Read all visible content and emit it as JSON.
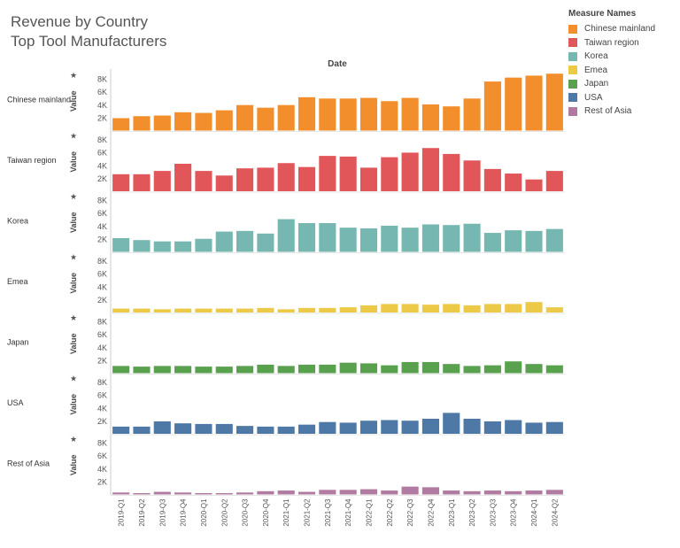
{
  "title": "Revenue by Country",
  "subtitle": "Top Tool Manufacturers",
  "legend": {
    "title": "Measure Names",
    "items": [
      {
        "label": "Chinese mainland",
        "color": "#f28e2b"
      },
      {
        "label": "Taiwan region",
        "color": "#e15759"
      },
      {
        "label": "Korea",
        "color": "#76b7b2"
      },
      {
        "label": "Emea",
        "color": "#edc948"
      },
      {
        "label": "Japan",
        "color": "#59a14f"
      },
      {
        "label": "USA",
        "color": "#4e79a7"
      },
      {
        "label": "Rest of Asia",
        "color": "#b07aa1"
      }
    ]
  },
  "chart_data": {
    "type": "bar",
    "xlabel": "Date",
    "ylabel": "Value",
    "ylim": [
      0,
      9000
    ],
    "y_ticks": [
      "2K",
      "4K",
      "6K",
      "8K"
    ],
    "grid": false,
    "legend_position": "top-right",
    "categories": [
      "2019-Q1",
      "2019-Q2",
      "2019-Q3",
      "2019-Q4",
      "2020-Q1",
      "2020-Q2",
      "2020-Q3",
      "2020-Q4",
      "2021-Q1",
      "2021-Q2",
      "2021-Q3",
      "2021-Q4",
      "2022-Q1",
      "2022-Q2",
      "2022-Q3",
      "2022-Q4",
      "2023-Q1",
      "2023-Q2",
      "2023-Q3",
      "2023-Q4",
      "2024-Q1",
      "2024-Q2"
    ],
    "series": [
      {
        "name": "Chinese mainland",
        "color": "#f28e2b",
        "values": [
          1900,
          2200,
          2300,
          2800,
          2700,
          3100,
          3900,
          3500,
          3900,
          5100,
          4900,
          4900,
          5000,
          4500,
          5000,
          4000,
          3700,
          4900,
          7500,
          8100,
          8400,
          8700
        ]
      },
      {
        "name": "Taiwan region",
        "color": "#e15759",
        "values": [
          2600,
          2600,
          3100,
          4200,
          3100,
          2400,
          3500,
          3600,
          4300,
          3700,
          5400,
          5300,
          3600,
          5200,
          5900,
          6600,
          5700,
          4700,
          3400,
          2700,
          1800,
          3100
        ]
      },
      {
        "name": "Korea",
        "color": "#76b7b2",
        "values": [
          2100,
          1800,
          1600,
          1600,
          2000,
          3100,
          3200,
          2800,
          5000,
          4400,
          4400,
          3700,
          3600,
          4000,
          3700,
          4200,
          4100,
          4300,
          2900,
          3300,
          3200,
          3500
        ]
      },
      {
        "name": "Emea",
        "color": "#edc948",
        "values": [
          600,
          600,
          500,
          600,
          600,
          600,
          600,
          700,
          500,
          700,
          700,
          800,
          1100,
          1300,
          1300,
          1200,
          1300,
          1100,
          1300,
          1300,
          1600,
          800
        ]
      },
      {
        "name": "Japan",
        "color": "#59a14f",
        "values": [
          1100,
          1000,
          1100,
          1100,
          1000,
          1000,
          1100,
          1300,
          1100,
          1300,
          1300,
          1600,
          1500,
          1200,
          1700,
          1700,
          1400,
          1100,
          1200,
          1800,
          1400,
          1200
        ]
      },
      {
        "name": "USA",
        "color": "#4e79a7",
        "values": [
          1100,
          1100,
          1900,
          1600,
          1500,
          1500,
          1200,
          1100,
          1100,
          1400,
          1800,
          1700,
          2000,
          2100,
          2000,
          2300,
          3200,
          2300,
          1900,
          2100,
          1700,
          1800
        ]
      },
      {
        "name": "Rest of Asia",
        "color": "#b07aa1",
        "values": [
          300,
          200,
          400,
          300,
          200,
          200,
          300,
          500,
          600,
          400,
          700,
          700,
          800,
          600,
          1200,
          1100,
          600,
          500,
          600,
          500,
          600,
          700
        ]
      }
    ]
  }
}
